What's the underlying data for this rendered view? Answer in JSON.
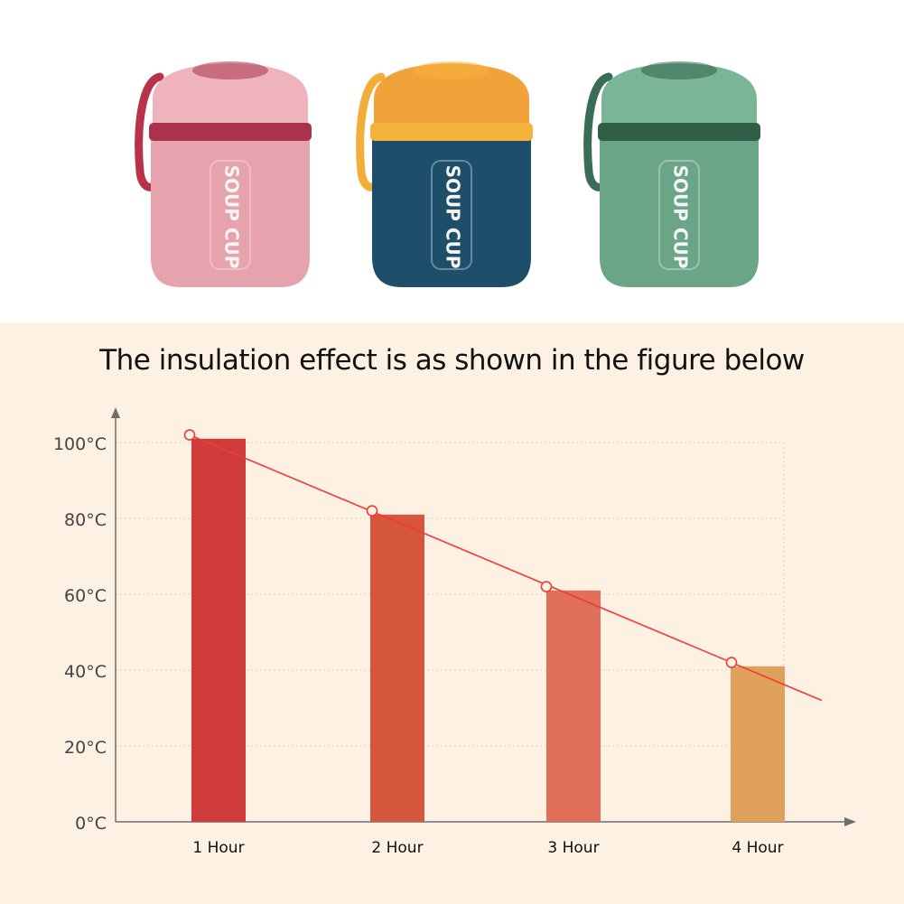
{
  "products": [
    {
      "label": "SOUP CUP",
      "colors": {
        "body": "#e6a2ad",
        "lid": "#eeb3bd",
        "band": "#a8334a",
        "strap": "#b8324a",
        "text": "#f8f4f4"
      }
    },
    {
      "label": "SOUP CUP",
      "colors": {
        "body": "#1d4e6a",
        "lid": "#f2a23a",
        "band": "#f6b33c",
        "strap": "#f2ae3b",
        "text": "#f5f5f5"
      }
    },
    {
      "label": "SOUP CUP",
      "colors": {
        "body": "#6aa587",
        "lid": "#79b596",
        "band": "#2f5f49",
        "strap": "#3b6c55",
        "text": "#f5f5f5"
      }
    }
  ],
  "chart_data": {
    "type": "bar",
    "title": "The insulation effect is as shown in the figure below",
    "categories": [
      "1 Hour",
      "2 Hour",
      "3 Hour",
      "4 Hour"
    ],
    "values": [
      101,
      81,
      61,
      41
    ],
    "trend_points": [
      102,
      82,
      62,
      42
    ],
    "y_ticks": [
      "0°C",
      "20°C",
      "40°C",
      "60°C",
      "80°C",
      "100°C"
    ],
    "y_tick_values": [
      0,
      20,
      40,
      60,
      80,
      100
    ],
    "ylim": [
      0,
      100
    ],
    "grid": true,
    "colors": {
      "bars": [
        "#d03c3b",
        "#d5563d",
        "#e07059",
        "#dfa05b"
      ],
      "trend": "#ee3b35",
      "axis": "#6e6e6e",
      "grid": "#d8d0c4"
    }
  }
}
